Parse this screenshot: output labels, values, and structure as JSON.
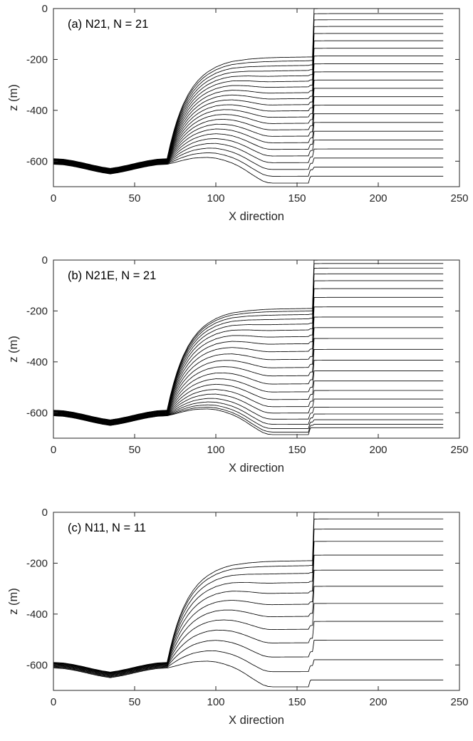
{
  "figure": {
    "background": "#ffffff",
    "axis_color": "#262626",
    "line_color": "#000000",
    "tick_label_color": "#262626"
  },
  "geometry": {
    "x_start": 0,
    "x_end": 240,
    "ice_front_x": 160,
    "top_boundary": [
      [
        0,
        -590
      ],
      [
        6,
        -592
      ],
      [
        12,
        -598
      ],
      [
        18,
        -606
      ],
      [
        24,
        -615
      ],
      [
        30,
        -623
      ],
      [
        35,
        -628
      ],
      [
        40,
        -623
      ],
      [
        46,
        -615
      ],
      [
        52,
        -606
      ],
      [
        58,
        -598
      ],
      [
        64,
        -592
      ],
      [
        70,
        -590
      ],
      [
        72,
        -533
      ],
      [
        74,
        -484
      ],
      [
        76,
        -442
      ],
      [
        78,
        -406
      ],
      [
        80,
        -375
      ],
      [
        83,
        -337
      ],
      [
        86,
        -307
      ],
      [
        89,
        -283
      ],
      [
        92,
        -264
      ],
      [
        95,
        -249
      ],
      [
        100,
        -230
      ],
      [
        105,
        -217
      ],
      [
        110,
        -208
      ],
      [
        120,
        -199
      ],
      [
        130,
        -194
      ],
      [
        140,
        -192
      ],
      [
        150,
        -191
      ],
      [
        159.8,
        -190
      ],
      [
        160.2,
        -0.5
      ],
      [
        170,
        0
      ],
      [
        240,
        0
      ]
    ],
    "bottom_boundary": [
      [
        0,
        -612
      ],
      [
        6,
        -614
      ],
      [
        12,
        -620
      ],
      [
        18,
        -628
      ],
      [
        24,
        -637
      ],
      [
        30,
        -645
      ],
      [
        35,
        -650
      ],
      [
        40,
        -645
      ],
      [
        46,
        -637
      ],
      [
        52,
        -628
      ],
      [
        58,
        -620
      ],
      [
        64,
        -614
      ],
      [
        70,
        -612
      ],
      [
        74,
        -606
      ],
      [
        78,
        -599
      ],
      [
        82,
        -593
      ],
      [
        86,
        -588
      ],
      [
        90,
        -586
      ],
      [
        95,
        -585
      ],
      [
        100,
        -588
      ],
      [
        105,
        -596
      ],
      [
        110,
        -607
      ],
      [
        114,
        -619
      ],
      [
        118,
        -634
      ],
      [
        122,
        -651
      ],
      [
        126,
        -667
      ],
      [
        129,
        -678
      ],
      [
        132,
        -684
      ],
      [
        135,
        -686
      ],
      [
        157,
        -686
      ],
      [
        158.2,
        -659
      ],
      [
        165,
        -659
      ],
      [
        240,
        -659
      ]
    ]
  },
  "chart_data": [
    {
      "type": "line",
      "title": "(a) N21, N = 21",
      "xlabel": "X direction",
      "ylabel": "z (m)",
      "xlim": [
        0,
        250
      ],
      "ylim": [
        -700,
        0
      ],
      "xticks": [
        0,
        50,
        100,
        150,
        200,
        250
      ],
      "yticks": [
        0,
        -200,
        -400,
        -600
      ],
      "n_layers": 21,
      "sigma_levels": [
        0,
        0.0302,
        0.0669,
        0.1067,
        0.1485,
        0.192,
        0.2367,
        0.2827,
        0.3296,
        0.3774,
        0.4261,
        0.4754,
        0.5254,
        0.5761,
        0.6273,
        0.6791,
        0.7315,
        0.7843,
        0.8375,
        0.8913,
        0.9455,
        1
      ]
    },
    {
      "type": "line",
      "title": "(b) N21E, N = 21",
      "xlabel": "X direction",
      "ylabel": "z (m)",
      "xlim": [
        0,
        250
      ],
      "ylim": [
        -700,
        0
      ],
      "xticks": [
        0,
        50,
        100,
        150,
        200,
        250
      ],
      "yticks": [
        0,
        -200,
        -400,
        -600
      ],
      "n_layers": 21,
      "sigma_levels": [
        0,
        0.0203,
        0.0478,
        0.0822,
        0.1231,
        0.1701,
        0.2224,
        0.2792,
        0.3396,
        0.4027,
        0.4674,
        0.5326,
        0.5973,
        0.6604,
        0.7208,
        0.7776,
        0.8286,
        0.8769,
        0.9178,
        0.9522,
        0.9797,
        1
      ]
    },
    {
      "type": "line",
      "title": "(c) N11, N = 11",
      "xlabel": "X direction",
      "ylabel": "z (m)",
      "xlim": [
        0,
        250
      ],
      "ylim": [
        -700,
        0
      ],
      "xticks": [
        0,
        50,
        100,
        150,
        200,
        250
      ],
      "yticks": [
        0,
        -200,
        -400,
        -600
      ],
      "n_layers": 11,
      "sigma_levels": [
        0,
        0.0393,
        0.1001,
        0.1731,
        0.2552,
        0.3449,
        0.4412,
        0.5433,
        0.6505,
        0.7627,
        0.8792,
        1
      ]
    }
  ]
}
